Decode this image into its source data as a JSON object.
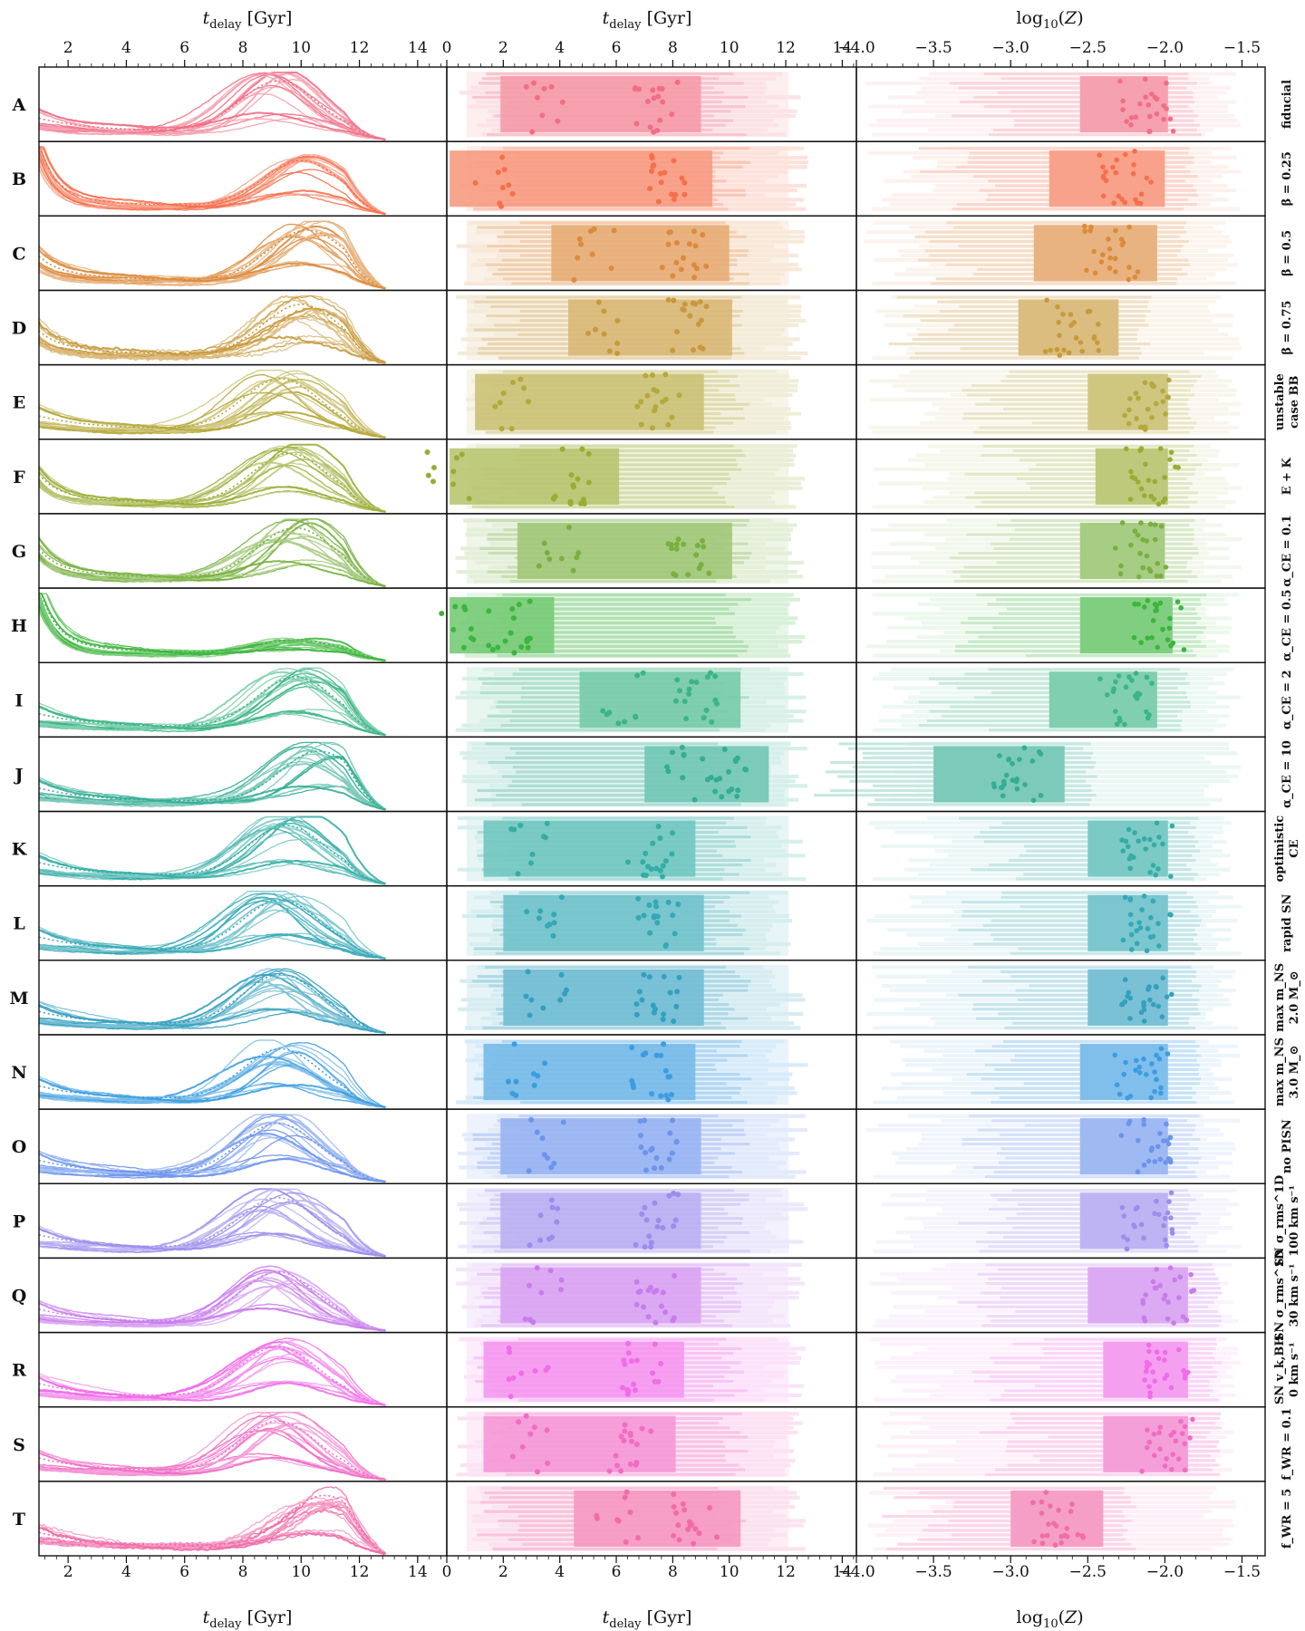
{
  "chart_data": {
    "type": "line",
    "description_panels": [
      "delay-time distribution curves",
      "delay-time range bars",
      "metallicity range bars"
    ],
    "panels": {
      "left": {
        "xlabel_top": "t_delay [Gyr]",
        "xlabel_bottom": "t_delay [Gyr]",
        "xlim": [
          1,
          15
        ],
        "ticks": [
          2,
          4,
          6,
          8,
          10,
          12,
          14
        ]
      },
      "middle": {
        "xlabel_top": "t_delay [Gyr]",
        "xlabel_bottom": "t_delay [Gyr]",
        "xlim": [
          0,
          14.5
        ],
        "ticks": [
          0,
          2,
          4,
          6,
          8,
          10,
          12,
          14
        ]
      },
      "right": {
        "xlabel_top": "log10(Z)",
        "xlabel_bottom": "log10(Z)",
        "xlim": [
          -4.0,
          -1.35
        ],
        "ticks": [
          -4.0,
          -3.5,
          -3.0,
          -2.5,
          -2.0,
          -1.5
        ],
        "tick_labels": [
          "−4.0",
          "−3.5",
          "−3.0",
          "−2.5",
          "−2.0",
          "−1.5"
        ]
      }
    },
    "series": [
      {
        "letter": "A",
        "label": "fiducial",
        "color": "#f06e84",
        "peak_delay": 9.2,
        "delay_low": 3.4,
        "delay_high": 7.4,
        "logZ_center": -2.12,
        "logZ_core_low": -2.55,
        "logZ_core_high": -1.98,
        "early_spike": 0.0,
        "late_hump": 1.0
      },
      {
        "letter": "B",
        "label": "β = 0.25",
        "color": "#f4704c",
        "peak_delay": 10.0,
        "delay_low": 1.6,
        "delay_high": 7.8,
        "logZ_center": -2.25,
        "logZ_core_low": -2.75,
        "logZ_core_high": -2.0,
        "early_spike": 0.9,
        "late_hump": 0.9
      },
      {
        "letter": "C",
        "label": "β = 0.5",
        "color": "#dc8a3c",
        "peak_delay": 10.2,
        "delay_low": 5.2,
        "delay_high": 8.4,
        "logZ_center": -2.35,
        "logZ_core_low": -2.85,
        "logZ_core_high": -2.05,
        "early_spike": 0.2,
        "late_hump": 1.0
      },
      {
        "letter": "D",
        "label": "β = 0.75",
        "color": "#c8993c",
        "peak_delay": 10.0,
        "delay_low": 5.8,
        "delay_high": 8.5,
        "logZ_center": -2.6,
        "logZ_core_low": -2.95,
        "logZ_core_high": -2.3,
        "early_spike": 0.2,
        "late_hump": 1.0
      },
      {
        "letter": "E",
        "label_lines": [
          "unstable",
          "case BB"
        ],
        "color": "#b5a83c",
        "peak_delay": 9.3,
        "delay_low": 2.5,
        "delay_high": 7.5,
        "logZ_center": -2.12,
        "logZ_core_low": -2.5,
        "logZ_core_high": -1.98,
        "early_spike": 0.0,
        "late_hump": 1.0
      },
      {
        "letter": "F",
        "label": "E + K",
        "color": "#9bac34",
        "peak_delay": 9.6,
        "delay_low": 0.1,
        "delay_high": 4.5,
        "logZ_center": -2.08,
        "logZ_core_low": -2.45,
        "logZ_core_high": -1.98,
        "early_spike": 0.3,
        "late_hump": 1.0
      },
      {
        "letter": "G",
        "label": "α_CE = 0.1",
        "color": "#78b040",
        "peak_delay": 9.8,
        "delay_low": 4.0,
        "delay_high": 8.5,
        "logZ_center": -2.15,
        "logZ_core_low": -2.55,
        "logZ_core_high": -2.0,
        "early_spike": 0.3,
        "late_hump": 1.0
      },
      {
        "letter": "H",
        "label": "α_CE = 0.5",
        "color": "#3cb53c",
        "peak_delay": 9.8,
        "delay_low": 0.6,
        "delay_high": 2.2,
        "logZ_center": -2.05,
        "logZ_core_low": -2.55,
        "logZ_core_high": -1.95,
        "early_spike": 1.0,
        "late_hump": 0.25
      },
      {
        "letter": "I",
        "label": "α_CE = 2",
        "color": "#3cb585",
        "peak_delay": 9.8,
        "delay_low": 6.2,
        "delay_high": 8.8,
        "logZ_center": -2.25,
        "logZ_core_low": -2.75,
        "logZ_core_high": -2.05,
        "early_spike": 0.0,
        "late_hump": 1.0
      },
      {
        "letter": "J",
        "label": "α_CE = 10",
        "color": "#34ad95",
        "peak_delay": 10.6,
        "delay_low": 8.5,
        "delay_high": 9.8,
        "logZ_center": -2.95,
        "logZ_core_low": -3.5,
        "logZ_core_high": -2.65,
        "early_spike": 0.0,
        "late_hump": 1.0
      },
      {
        "letter": "K",
        "label_lines": [
          "optimistic",
          "CE"
        ],
        "color": "#34ada5",
        "peak_delay": 9.5,
        "delay_low": 2.8,
        "delay_high": 7.2,
        "logZ_center": -2.12,
        "logZ_core_low": -2.5,
        "logZ_core_high": -1.98,
        "early_spike": 0.0,
        "late_hump": 1.0
      },
      {
        "letter": "L",
        "label": "rapid SN",
        "color": "#34a8b5",
        "peak_delay": 9.3,
        "delay_low": 3.5,
        "delay_high": 7.5,
        "logZ_center": -2.12,
        "logZ_core_low": -2.5,
        "logZ_core_high": -1.98,
        "early_spike": 0.0,
        "late_hump": 1.0
      },
      {
        "letter": "M",
        "label_lines": [
          "max m_NS",
          "2.0 M_⊙"
        ],
        "color": "#34a0c0",
        "peak_delay": 9.3,
        "delay_low": 3.5,
        "delay_high": 7.5,
        "logZ_center": -2.12,
        "logZ_core_low": -2.5,
        "logZ_core_high": -1.98,
        "early_spike": 0.0,
        "late_hump": 1.0
      },
      {
        "letter": "N",
        "label_lines": [
          "max m_NS",
          "3.0 M_⊙"
        ],
        "color": "#3c9ce0",
        "peak_delay": 9.3,
        "delay_low": 2.8,
        "delay_high": 7.2,
        "logZ_center": -2.15,
        "logZ_core_low": -2.55,
        "logZ_core_high": -1.98,
        "early_spike": 0.0,
        "late_hump": 1.0
      },
      {
        "letter": "O",
        "label": "no PISN",
        "color": "#6c94ec",
        "peak_delay": 9.2,
        "delay_low": 3.4,
        "delay_high": 7.4,
        "logZ_center": -2.12,
        "logZ_core_low": -2.55,
        "logZ_core_high": -1.98,
        "early_spike": 0.0,
        "late_hump": 1.0
      },
      {
        "letter": "P",
        "label_lines": [
          "SN σ_rms^1D",
          "100 km s⁻¹"
        ],
        "color": "#9c8cec",
        "peak_delay": 9.2,
        "delay_low": 3.4,
        "delay_high": 7.4,
        "logZ_center": -2.12,
        "logZ_core_low": -2.55,
        "logZ_core_high": -1.98,
        "early_spike": 0.0,
        "late_hump": 1.0
      },
      {
        "letter": "Q",
        "label_lines": [
          "SN σ_rms^1D",
          "30 km s⁻¹"
        ],
        "color": "#c87cec",
        "peak_delay": 9.2,
        "delay_low": 3.4,
        "delay_high": 7.4,
        "logZ_center": -1.98,
        "logZ_core_low": -2.5,
        "logZ_core_high": -1.85,
        "early_spike": 0.0,
        "late_hump": 1.0
      },
      {
        "letter": "R",
        "label_lines": [
          "SN v_k,BH",
          "0 km s⁻¹"
        ],
        "color": "#f06ce8",
        "peak_delay": 9.2,
        "delay_low": 2.8,
        "delay_high": 6.8,
        "logZ_center": -1.98,
        "logZ_core_low": -2.4,
        "logZ_core_high": -1.85,
        "early_spike": 0.0,
        "late_hump": 1.0
      },
      {
        "letter": "S",
        "label": "f_WR = 0.1",
        "color": "#f06cc4",
        "peak_delay": 9.2,
        "delay_low": 2.8,
        "delay_high": 6.5,
        "logZ_center": -1.98,
        "logZ_core_low": -2.4,
        "logZ_core_high": -1.85,
        "early_spike": 0.0,
        "late_hump": 1.0
      },
      {
        "letter": "T",
        "label": "f_WR = 5",
        "color": "#f06ca8",
        "peak_delay": 10.8,
        "delay_low": 6.0,
        "delay_high": 8.8,
        "logZ_center": -2.7,
        "logZ_core_low": -3.0,
        "logZ_core_high": -2.4,
        "early_spike": 0.0,
        "late_hump": 1.0
      }
    ]
  }
}
